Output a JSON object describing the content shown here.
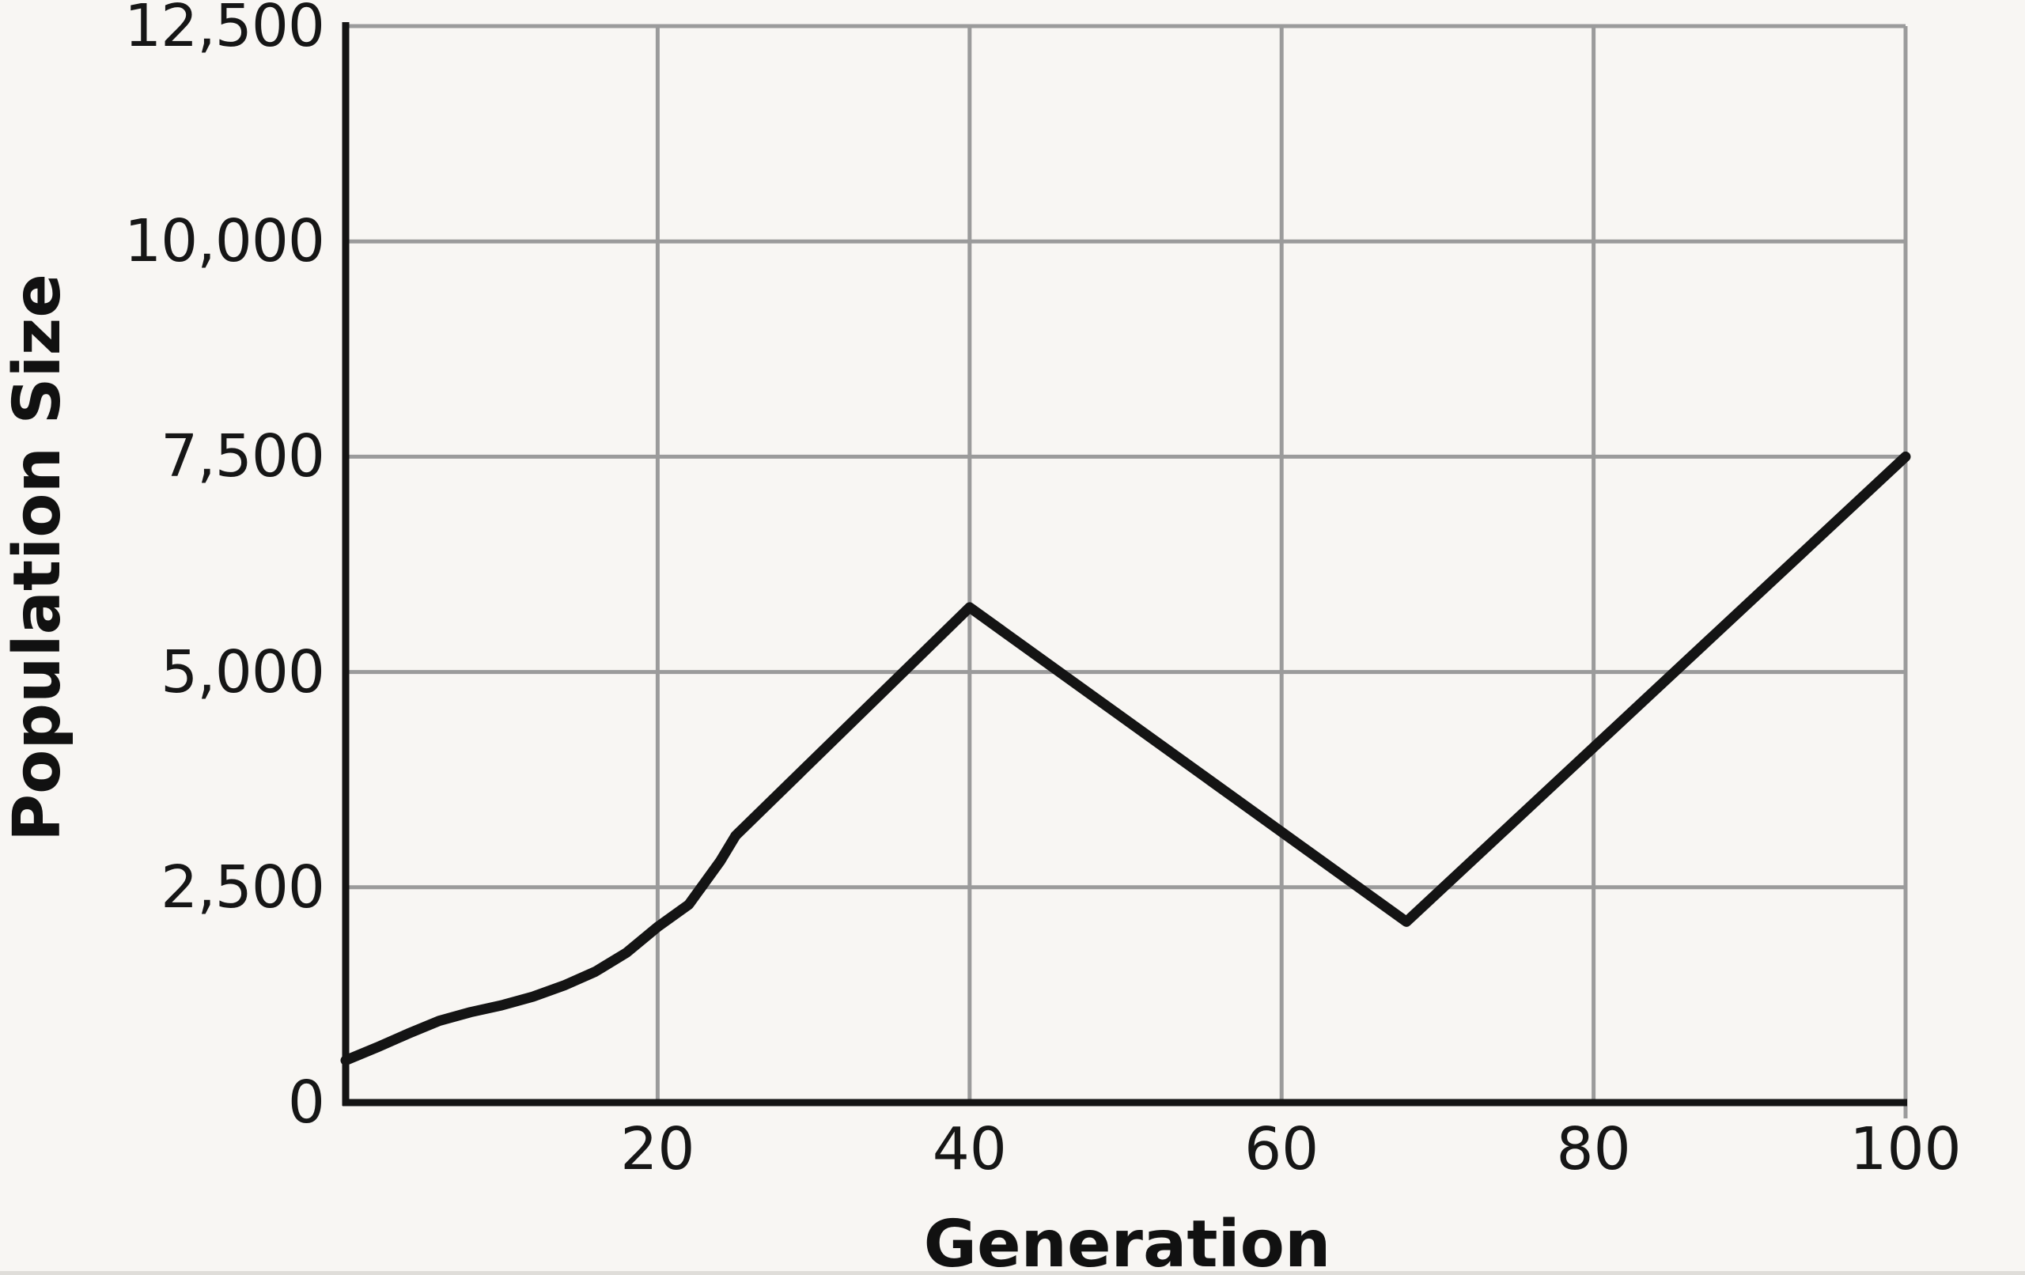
{
  "chart_data": {
    "type": "line",
    "title": "",
    "xlabel": "Generation",
    "ylabel": "Population Size",
    "xlim": [
      0,
      100
    ],
    "ylim": [
      0,
      12500
    ],
    "grid": true,
    "legend": "none",
    "x_ticks": [
      {
        "value": 20,
        "label": "20"
      },
      {
        "value": 40,
        "label": "40"
      },
      {
        "value": 60,
        "label": "60"
      },
      {
        "value": 80,
        "label": "80"
      },
      {
        "value": 100,
        "label": "100"
      }
    ],
    "y_ticks": [
      {
        "value": 0,
        "label": "0"
      },
      {
        "value": 2500,
        "label": "2,500"
      },
      {
        "value": 5000,
        "label": "5,000"
      },
      {
        "value": 7500,
        "label": "7,500"
      },
      {
        "value": 10000,
        "label": "10,000"
      },
      {
        "value": 12500,
        "label": "12,500"
      }
    ],
    "series": [
      {
        "name": "Population Size",
        "points": [
          [
            0,
            490
          ],
          [
            2,
            640
          ],
          [
            4,
            800
          ],
          [
            6,
            950
          ],
          [
            8,
            1050
          ],
          [
            10,
            1130
          ],
          [
            12,
            1230
          ],
          [
            14,
            1360
          ],
          [
            16,
            1520
          ],
          [
            18,
            1740
          ],
          [
            20,
            2040
          ],
          [
            22,
            2300
          ],
          [
            24,
            2800
          ],
          [
            25,
            3100
          ],
          [
            40,
            5750
          ],
          [
            68,
            2100
          ],
          [
            100,
            7500
          ]
        ]
      }
    ],
    "colors": {
      "line": "#141414",
      "axis": "#141414",
      "grid": "#9b9b9b",
      "background": "#f8f6f3",
      "text": "#161616"
    }
  }
}
